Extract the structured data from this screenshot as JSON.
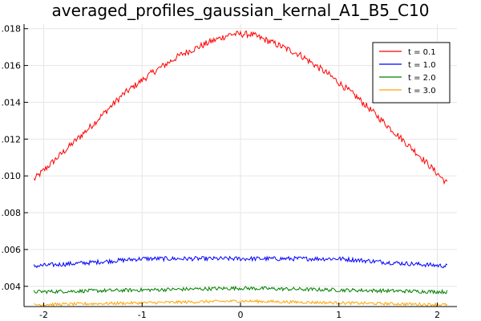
{
  "chart_data": {
    "type": "line",
    "title": "averaged_profiles_gaussian_kernal_A1_B5_C10",
    "xlabel": "",
    "ylabel": "",
    "xlim": [
      -2.2,
      2.2
    ],
    "ylim": [
      0.0029,
      0.01825
    ],
    "x_ticks": [
      {
        "value": -2,
        "label": "-2"
      },
      {
        "value": -1,
        "label": "-1"
      },
      {
        "value": 0,
        "label": "0"
      },
      {
        "value": 1,
        "label": "1"
      },
      {
        "value": 2,
        "label": "2"
      }
    ],
    "y_ticks": [
      {
        "value": 0.004,
        "label": ".004"
      },
      {
        "value": 0.006,
        "label": ".006"
      },
      {
        "value": 0.008,
        "label": ".008"
      },
      {
        "value": 0.01,
        "label": ".010"
      },
      {
        "value": 0.012,
        "label": ".012"
      },
      {
        "value": 0.014,
        "label": ".014"
      },
      {
        "value": 0.016,
        "label": ".016"
      },
      {
        "value": 0.018,
        "label": ".018"
      }
    ],
    "grid": true,
    "legend_position": "top-right",
    "series": [
      {
        "name": "t = 0.1",
        "color": "#ff0000",
        "x": [
          -2.1,
          -1.8,
          -1.5,
          -1.2,
          -0.9,
          -0.6,
          -0.3,
          -0.1,
          0.0,
          0.1,
          0.3,
          0.6,
          0.9,
          1.2,
          1.5,
          1.8,
          2.1
        ],
        "y": [
          0.0098,
          0.0113,
          0.0128,
          0.0144,
          0.0156,
          0.0166,
          0.0173,
          0.0177,
          0.0177,
          0.0177,
          0.0173,
          0.0166,
          0.0155,
          0.0142,
          0.0127,
          0.0112,
          0.0096
        ]
      },
      {
        "name": "t = 1.0",
        "color": "#0000ff",
        "x": [
          -2.1,
          -1.5,
          -1.0,
          -0.5,
          0.0,
          0.5,
          1.0,
          1.5,
          2.1
        ],
        "y": [
          0.0051,
          0.0053,
          0.0055,
          0.0055,
          0.0055,
          0.0055,
          0.0055,
          0.0053,
          0.0051
        ]
      },
      {
        "name": "t = 2.0",
        "color": "#008000",
        "x": [
          -2.1,
          -1.0,
          0.0,
          1.0,
          2.1
        ],
        "y": [
          0.0037,
          0.0038,
          0.0039,
          0.0038,
          0.0037
        ]
      },
      {
        "name": "t = 3.0",
        "color": "#ffa500",
        "x": [
          -2.1,
          -1.0,
          0.0,
          1.0,
          2.1
        ],
        "y": [
          0.003,
          0.0031,
          0.0032,
          0.0031,
          0.003
        ]
      }
    ]
  }
}
